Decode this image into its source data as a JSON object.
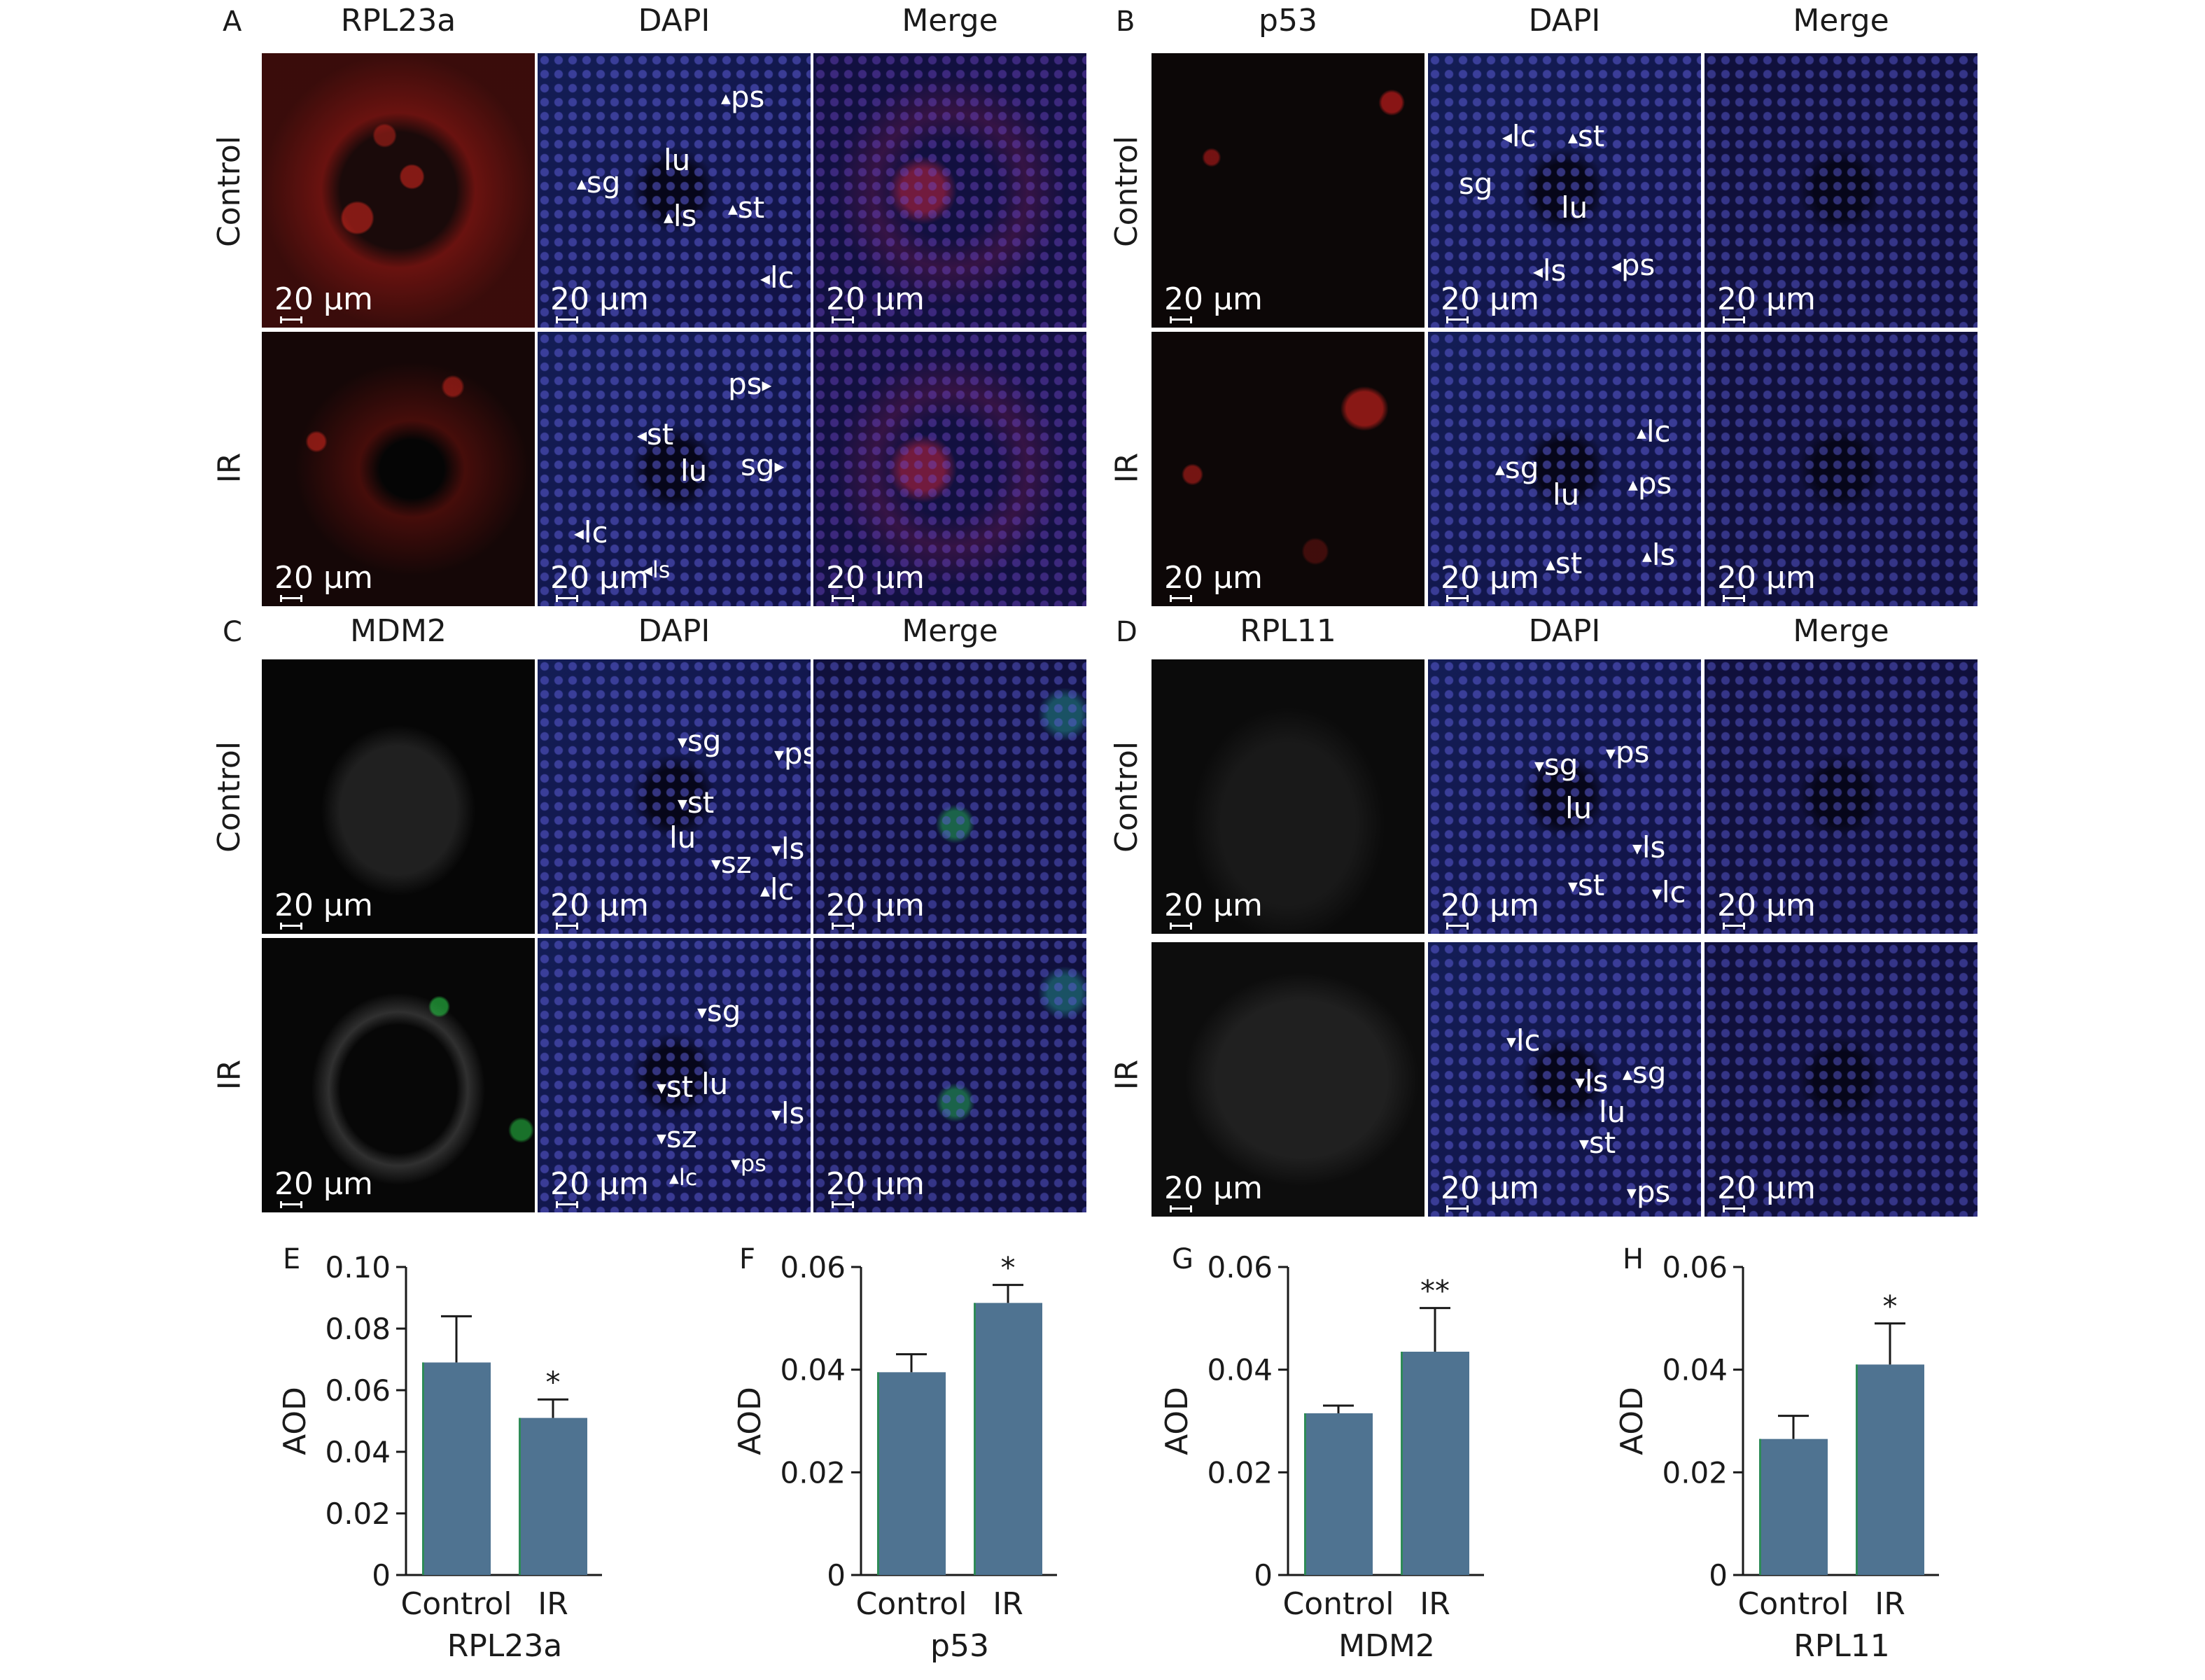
{
  "panels": {
    "A": {
      "letter": "A",
      "titles": [
        "RPL23a",
        "DAPI",
        "Merge"
      ],
      "rows": [
        "Control",
        "IR"
      ],
      "annotations": {
        "control_dapi": [
          "ps",
          "lu",
          "sg",
          "ls",
          "st",
          "lc"
        ],
        "ir_dapi": [
          "ps",
          "st",
          "lu",
          "sg",
          "lc",
          "ls"
        ]
      }
    },
    "B": {
      "letter": "B",
      "titles": [
        "p53",
        "DAPI",
        "Merge"
      ],
      "rows": [
        "Control",
        "IR"
      ],
      "annotations": {
        "control_dapi": [
          "lc",
          "st",
          "sg",
          "lu",
          "ls",
          "ps"
        ],
        "ir_dapi": [
          "lc",
          "sg",
          "ps",
          "lu",
          "st",
          "ls"
        ]
      }
    },
    "C": {
      "letter": "C",
      "titles": [
        "MDM2",
        "DAPI",
        "Merge"
      ],
      "rows": [
        "Control",
        "IR"
      ],
      "annotations": {
        "control_dapi": [
          "sg",
          "ps",
          "st",
          "lu",
          "ls",
          "sz",
          "lc"
        ],
        "ir_dapi": [
          "sg",
          "st",
          "lu",
          "ls",
          "sz",
          "ps",
          "lc"
        ]
      }
    },
    "D": {
      "letter": "D",
      "titles": [
        "RPL11",
        "DAPI",
        "Merge"
      ],
      "rows": [
        "Control",
        "IR"
      ],
      "annotations": {
        "control_dapi": [
          "sg",
          "ps",
          "lu",
          "ls",
          "st",
          "lc"
        ],
        "ir_dapi": [
          "lc",
          "ls",
          "sg",
          "lu",
          "st",
          "ps"
        ]
      }
    }
  },
  "scale_label": "20 μm",
  "colors": {
    "bar_fill": "#4f7391",
    "bar_edge_left": "#2e8b57",
    "axis": "#1a1a1a"
  },
  "chart_data": [
    {
      "panel": "E",
      "type": "bar",
      "categories": [
        "Control",
        "IR"
      ],
      "values": [
        0.069,
        0.051
      ],
      "errors": [
        0.015,
        0.006
      ],
      "significance": [
        "",
        "*"
      ],
      "xlabel": "RPL23a",
      "ylabel": "AOD",
      "ylim": [
        0,
        0.1
      ],
      "yticks": [
        "0",
        "0.02",
        "0.04",
        "0.06",
        "0.08",
        "0.10"
      ]
    },
    {
      "panel": "F",
      "type": "bar",
      "categories": [
        "Control",
        "IR"
      ],
      "values": [
        0.0395,
        0.053
      ],
      "errors": [
        0.0035,
        0.0035
      ],
      "significance": [
        "",
        "*"
      ],
      "xlabel": "p53",
      "ylabel": "AOD",
      "ylim": [
        0,
        0.06
      ],
      "yticks": [
        "0",
        "0.02",
        "0.04",
        "0.06"
      ]
    },
    {
      "panel": "G",
      "type": "bar",
      "categories": [
        "Control",
        "IR"
      ],
      "values": [
        0.0315,
        0.0435
      ],
      "errors": [
        0.0015,
        0.0085
      ],
      "significance": [
        "",
        "**"
      ],
      "xlabel": "MDM2",
      "ylabel": "AOD",
      "ylim": [
        0,
        0.06
      ],
      "yticks": [
        "0",
        "0.02",
        "0.04",
        "0.06"
      ]
    },
    {
      "panel": "H",
      "type": "bar",
      "categories": [
        "Control",
        "IR"
      ],
      "values": [
        0.0265,
        0.041
      ],
      "errors": [
        0.0045,
        0.008
      ],
      "significance": [
        "",
        "*"
      ],
      "xlabel": "RPL11",
      "ylabel": "AOD",
      "ylim": [
        0,
        0.06
      ],
      "yticks": [
        "0",
        "0.02",
        "0.04",
        "0.06"
      ]
    }
  ]
}
